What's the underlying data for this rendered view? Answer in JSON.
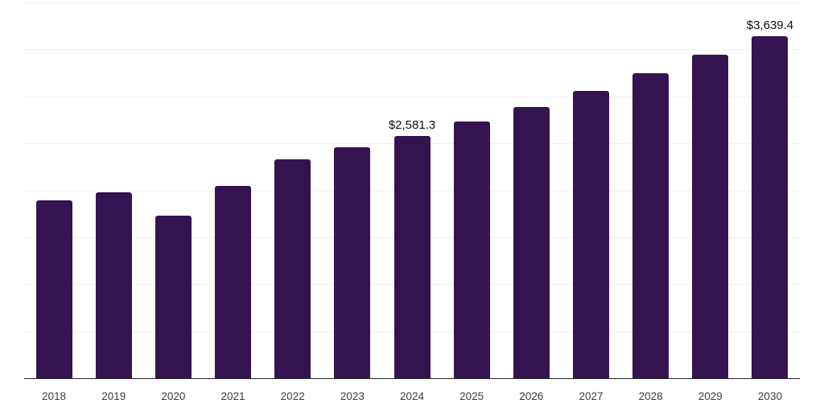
{
  "chart_data": {
    "type": "bar",
    "categories": [
      "2018",
      "2019",
      "2020",
      "2021",
      "2022",
      "2023",
      "2024",
      "2025",
      "2026",
      "2027",
      "2028",
      "2029",
      "2030"
    ],
    "values": [
      1890,
      1980,
      1730,
      2050,
      2330,
      2460,
      2581.3,
      2730,
      2890,
      3060,
      3250,
      3440,
      3639.4
    ],
    "point_labels": [
      "",
      "",
      "",
      "",
      "",
      "",
      "$2,581.3",
      "",
      "",
      "",
      "",
      "",
      "$3,639.4"
    ],
    "ylim": [
      0,
      4000
    ],
    "grid_step": 500,
    "grid": "on",
    "y_tick_labels_visible": false,
    "legend": "none",
    "colors": {
      "bar": "#341450",
      "grid": "#f2f2f2",
      "axis": "#262626",
      "x_tick_label": "#3d3d3d",
      "value_label": "#111111",
      "background": "#ffffff"
    }
  }
}
